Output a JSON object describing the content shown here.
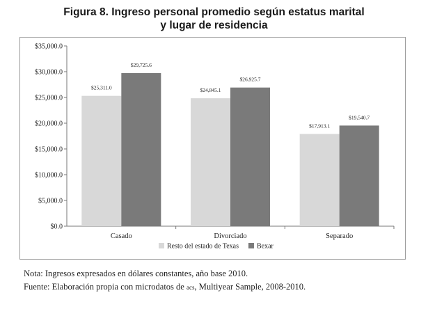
{
  "figure": {
    "title_line1": "Figura 8. Ingreso personal promedio según estatus marital",
    "title_line2": "y lugar de residencia"
  },
  "chart_data": {
    "type": "bar",
    "categories": [
      "Casado",
      "Divorciado",
      "Separado"
    ],
    "series": [
      {
        "name": "Resto del estado de Texas",
        "values": [
          25311.0,
          24845.1,
          17913.1
        ],
        "labels": [
          "$25,311.0",
          "$24,845.1",
          "$17,913.1"
        ],
        "color": "#d8d8d8"
      },
      {
        "name": "Bexar",
        "values": [
          29725.6,
          26925.7,
          19540.7
        ],
        "labels": [
          "$29,725.6",
          "$26,925.7",
          "$19,540.7"
        ],
        "color": "#7a7a7a"
      }
    ],
    "ylim": [
      0,
      35000
    ],
    "yticks": [
      0,
      5000,
      10000,
      15000,
      20000,
      25000,
      30000,
      35000
    ],
    "ytick_labels": [
      "$0.0",
      "$5,000.0",
      "$10,000.0",
      "$15,000.0",
      "$20,000.0",
      "$25,000.0",
      "$30,000.0",
      "$35,000.0"
    ],
    "xlabel": "",
    "ylabel": "",
    "legend_position": "bottom",
    "grid": false
  },
  "notes": {
    "note": "Nota: Ingresos expresados en dólares constantes, año base 2010.",
    "source_prefix": "Fuente: Elaboración propia con microdatos de ",
    "source_acronym": "acs",
    "source_suffix": ", Multiyear Sample, 2008-2010."
  }
}
